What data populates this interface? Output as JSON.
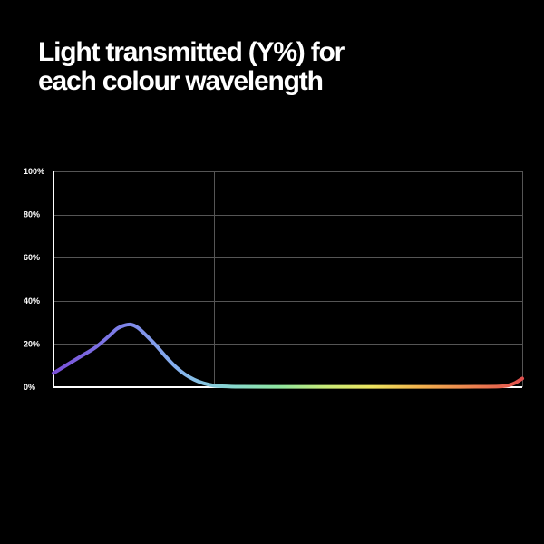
{
  "title": {
    "line1": "Light transmitted (Y%) for",
    "line2": "each colour wavelength"
  },
  "colors": {
    "background": "#000000",
    "text": "#ffffff",
    "grid": "#555555",
    "axis": "#ffffff"
  },
  "chart_data": {
    "type": "line",
    "title": "Light transmitted (Y%) for each colour wavelength",
    "xlabel": "",
    "ylabel": "",
    "ylim": [
      0,
      100
    ],
    "xlim": [
      0,
      100
    ],
    "y_ticks": [
      "0%",
      "20%",
      "40%",
      "60%",
      "80%",
      "100%"
    ],
    "y_tick_values": [
      0,
      20,
      40,
      60,
      80,
      100
    ],
    "x_gridlines": [
      0,
      34.2,
      68.3,
      100
    ],
    "grid": true,
    "series": [
      {
        "x": [
          0,
          3,
          6,
          9,
          12,
          13.5,
          15,
          16.5,
          18,
          20,
          22,
          24,
          26,
          28,
          30,
          32,
          34,
          36,
          40,
          50,
          60,
          70,
          80,
          90,
          95,
          97,
          98.5,
          100
        ],
        "y": [
          6.5,
          10.5,
          14.5,
          18.5,
          24,
          27,
          28.5,
          29,
          27.5,
          23.5,
          19,
          14,
          9.5,
          6,
          3.5,
          1.8,
          0.8,
          0.4,
          0.2,
          0.15,
          0.15,
          0.15,
          0.15,
          0.2,
          0.3,
          0.8,
          2,
          4
        ]
      }
    ],
    "gradient": [
      {
        "at": 0,
        "color": "#7a4fd8"
      },
      {
        "at": 0.14,
        "color": "#7d7fe8"
      },
      {
        "at": 0.27,
        "color": "#86b4ee"
      },
      {
        "at": 0.38,
        "color": "#88d8d0"
      },
      {
        "at": 0.48,
        "color": "#8ee6a0"
      },
      {
        "at": 0.58,
        "color": "#c8ea78"
      },
      {
        "at": 0.68,
        "color": "#ece35f"
      },
      {
        "at": 0.78,
        "color": "#f2b34e"
      },
      {
        "at": 0.9,
        "color": "#ec7f50"
      },
      {
        "at": 1,
        "color": "#e0504e"
      }
    ]
  }
}
